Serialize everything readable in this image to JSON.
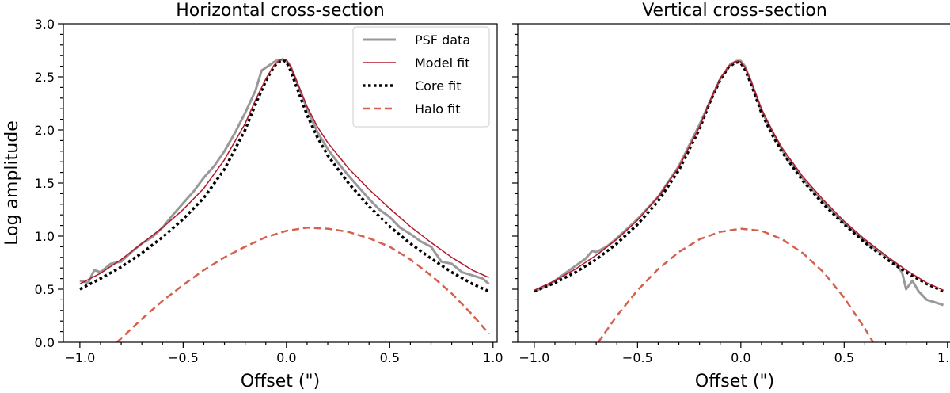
{
  "chart_data": [
    {
      "type": "line",
      "title": "Horizontal cross-section",
      "xlabel": "Offset (\")",
      "ylabel": "Log amplitude",
      "xlim": [
        -1.08,
        1.02
      ],
      "ylim": [
        0.0,
        3.0
      ],
      "xticks": [
        -1.0,
        -0.5,
        0.0,
        0.5,
        1.0
      ],
      "xtick_labels": [
        "−1.0",
        "−0.5",
        "0.0",
        "0.5",
        "1.0"
      ],
      "yticks": [
        0.0,
        0.5,
        1.0,
        1.5,
        2.0,
        2.5,
        3.0
      ],
      "ytick_labels": [
        "0.0",
        "0.5",
        "1.0",
        "1.5",
        "2.0",
        "2.5",
        "3.0"
      ],
      "legend": {
        "position": "top-right",
        "entries": [
          "PSF data",
          "Model fit",
          "Core fit",
          "Halo fit"
        ]
      },
      "series": [
        {
          "name": "PSF data",
          "color": "#999999",
          "style": "solid",
          "x": [
            -1.0,
            -0.96,
            -0.93,
            -0.9,
            -0.85,
            -0.8,
            -0.75,
            -0.7,
            -0.65,
            -0.6,
            -0.55,
            -0.5,
            -0.45,
            -0.4,
            -0.35,
            -0.3,
            -0.25,
            -0.2,
            -0.15,
            -0.12,
            -0.09,
            -0.06,
            -0.04,
            -0.02,
            0.0,
            0.02,
            0.05,
            0.08,
            0.1,
            0.15,
            0.2,
            0.25,
            0.3,
            0.35,
            0.4,
            0.45,
            0.5,
            0.55,
            0.6,
            0.65,
            0.7,
            0.75,
            0.8,
            0.85,
            0.9,
            0.95,
            0.98
          ],
          "y": [
            0.58,
            0.56,
            0.68,
            0.66,
            0.74,
            0.76,
            0.85,
            0.93,
            0.99,
            1.08,
            1.2,
            1.31,
            1.42,
            1.55,
            1.66,
            1.8,
            1.97,
            2.16,
            2.37,
            2.56,
            2.6,
            2.64,
            2.66,
            2.66,
            2.65,
            2.6,
            2.45,
            2.3,
            2.2,
            1.98,
            1.82,
            1.69,
            1.57,
            1.46,
            1.35,
            1.25,
            1.18,
            1.08,
            1.02,
            0.95,
            0.9,
            0.76,
            0.74,
            0.66,
            0.63,
            0.6,
            0.55
          ]
        },
        {
          "name": "Model fit",
          "color": "#b2182b",
          "style": "solid",
          "x": [
            -1.0,
            -0.9,
            -0.8,
            -0.7,
            -0.6,
            -0.5,
            -0.4,
            -0.3,
            -0.2,
            -0.15,
            -0.1,
            -0.06,
            -0.03,
            -0.02,
            0.0,
            0.02,
            0.05,
            0.1,
            0.15,
            0.2,
            0.3,
            0.4,
            0.5,
            0.6,
            0.7,
            0.8,
            0.9,
            0.98
          ],
          "y": [
            0.55,
            0.65,
            0.78,
            0.93,
            1.08,
            1.25,
            1.45,
            1.72,
            2.06,
            2.28,
            2.48,
            2.61,
            2.66,
            2.67,
            2.66,
            2.6,
            2.46,
            2.22,
            2.03,
            1.88,
            1.64,
            1.44,
            1.26,
            1.09,
            0.94,
            0.8,
            0.68,
            0.61
          ]
        },
        {
          "name": "Core fit",
          "color": "#000000",
          "style": "dotted",
          "x": [
            -1.0,
            -0.9,
            -0.8,
            -0.7,
            -0.6,
            -0.5,
            -0.4,
            -0.3,
            -0.2,
            -0.15,
            -0.1,
            -0.06,
            -0.03,
            -0.02,
            0.0,
            0.02,
            0.05,
            0.1,
            0.15,
            0.2,
            0.3,
            0.4,
            0.5,
            0.6,
            0.7,
            0.8,
            0.9,
            0.98
          ],
          "y": [
            0.5,
            0.6,
            0.71,
            0.84,
            0.99,
            1.16,
            1.36,
            1.63,
            2.0,
            2.24,
            2.46,
            2.6,
            2.65,
            2.66,
            2.64,
            2.56,
            2.4,
            2.14,
            1.93,
            1.76,
            1.5,
            1.28,
            1.09,
            0.93,
            0.79,
            0.66,
            0.55,
            0.48
          ]
        },
        {
          "name": "Halo fit",
          "color": "#d6604d",
          "style": "dashed",
          "x": [
            -0.82,
            -0.7,
            -0.6,
            -0.5,
            -0.4,
            -0.3,
            -0.2,
            -0.1,
            0.0,
            0.1,
            0.2,
            0.3,
            0.4,
            0.5,
            0.6,
            0.7,
            0.8,
            0.9,
            0.98
          ],
          "y": [
            0.0,
            0.22,
            0.39,
            0.54,
            0.68,
            0.8,
            0.9,
            0.99,
            1.05,
            1.08,
            1.07,
            1.04,
            0.98,
            0.9,
            0.78,
            0.63,
            0.46,
            0.26,
            0.08
          ]
        }
      ]
    },
    {
      "type": "line",
      "title": "Vertical cross-section",
      "xlabel": "Offset (\")",
      "ylabel": "",
      "xlim": [
        -1.08,
        1.02
      ],
      "ylim": [
        0.0,
        3.0
      ],
      "xticks": [
        -1.0,
        -0.5,
        0.0,
        0.5,
        1.0
      ],
      "xtick_labels": [
        "−1.0",
        "−0.5",
        "0.0",
        "0.5",
        "1.0"
      ],
      "yticks": [
        0.0,
        0.5,
        1.0,
        1.5,
        2.0,
        2.5,
        3.0
      ],
      "ytick_labels": [],
      "series": [
        {
          "name": "PSF data",
          "color": "#999999",
          "style": "solid",
          "x": [
            -1.0,
            -0.95,
            -0.9,
            -0.85,
            -0.8,
            -0.75,
            -0.72,
            -0.7,
            -0.65,
            -0.6,
            -0.5,
            -0.4,
            -0.3,
            -0.2,
            -0.1,
            -0.05,
            -0.02,
            0.0,
            0.02,
            0.05,
            0.1,
            0.2,
            0.3,
            0.4,
            0.5,
            0.6,
            0.7,
            0.75,
            0.78,
            0.8,
            0.83,
            0.86,
            0.9,
            0.95,
            0.98
          ],
          "y": [
            0.48,
            0.52,
            0.58,
            0.65,
            0.72,
            0.79,
            0.86,
            0.85,
            0.9,
            0.98,
            1.16,
            1.37,
            1.66,
            2.05,
            2.48,
            2.62,
            2.65,
            2.65,
            2.6,
            2.45,
            2.18,
            1.81,
            1.54,
            1.32,
            1.12,
            0.95,
            0.81,
            0.74,
            0.66,
            0.5,
            0.58,
            0.48,
            0.4,
            0.37,
            0.35
          ]
        },
        {
          "name": "Model fit",
          "color": "#b2182b",
          "style": "solid",
          "x": [
            -1.0,
            -0.9,
            -0.8,
            -0.7,
            -0.6,
            -0.5,
            -0.4,
            -0.3,
            -0.2,
            -0.15,
            -0.1,
            -0.06,
            -0.03,
            -0.01,
            0.0,
            0.02,
            0.05,
            0.1,
            0.15,
            0.2,
            0.3,
            0.4,
            0.5,
            0.6,
            0.7,
            0.8,
            0.9,
            0.98
          ],
          "y": [
            0.49,
            0.58,
            0.69,
            0.82,
            0.97,
            1.15,
            1.37,
            1.65,
            2.03,
            2.27,
            2.48,
            2.6,
            2.64,
            2.65,
            2.64,
            2.59,
            2.46,
            2.2,
            2.0,
            1.83,
            1.56,
            1.34,
            1.14,
            0.97,
            0.82,
            0.68,
            0.56,
            0.49
          ]
        },
        {
          "name": "Core fit",
          "color": "#000000",
          "style": "dotted",
          "x": [
            -1.0,
            -0.9,
            -0.8,
            -0.7,
            -0.6,
            -0.5,
            -0.4,
            -0.3,
            -0.2,
            -0.15,
            -0.1,
            -0.06,
            -0.03,
            -0.01,
            0.0,
            0.02,
            0.05,
            0.1,
            0.15,
            0.2,
            0.3,
            0.4,
            0.5,
            0.6,
            0.7,
            0.8,
            0.9,
            0.98
          ],
          "y": [
            0.48,
            0.56,
            0.66,
            0.78,
            0.93,
            1.11,
            1.33,
            1.62,
            2.01,
            2.26,
            2.47,
            2.59,
            2.63,
            2.64,
            2.63,
            2.57,
            2.43,
            2.16,
            1.96,
            1.79,
            1.52,
            1.3,
            1.11,
            0.94,
            0.79,
            0.66,
            0.55,
            0.48
          ]
        },
        {
          "name": "Halo fit",
          "color": "#d6604d",
          "style": "dashed",
          "x": [
            -0.69,
            -0.6,
            -0.5,
            -0.4,
            -0.3,
            -0.2,
            -0.1,
            0.0,
            0.1,
            0.2,
            0.3,
            0.4,
            0.5,
            0.6,
            0.64
          ],
          "y": [
            0.0,
            0.25,
            0.49,
            0.69,
            0.85,
            0.97,
            1.04,
            1.07,
            1.05,
            0.97,
            0.84,
            0.66,
            0.42,
            0.13,
            0.0
          ]
        }
      ]
    }
  ]
}
